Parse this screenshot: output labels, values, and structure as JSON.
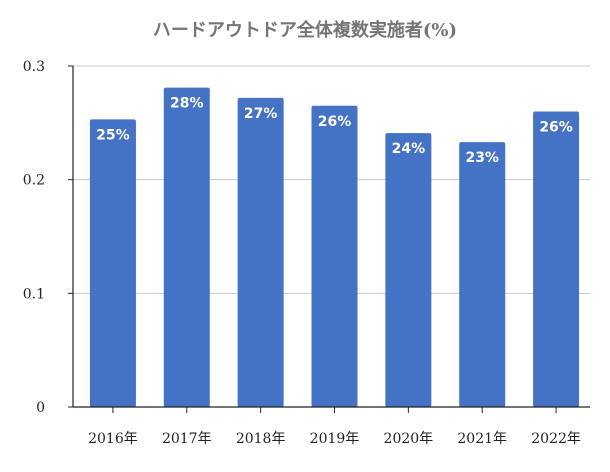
{
  "chart_data": {
    "type": "bar",
    "title": "ハードアウトドア全体複数実施者(%)",
    "xlabel": "",
    "ylabel": "",
    "categories": [
      "2016年",
      "2017年",
      "2018年",
      "2019年",
      "2020年",
      "2021年",
      "2022年"
    ],
    "values": [
      0.253,
      0.281,
      0.272,
      0.265,
      0.241,
      0.233,
      0.26
    ],
    "data_labels": [
      "25%",
      "28%",
      "27%",
      "26%",
      "24%",
      "23%",
      "26%"
    ],
    "ylim": [
      0,
      0.3
    ],
    "yticks": [
      "0",
      "0.1",
      "0.2",
      "0.3"
    ],
    "ytick_values": [
      0,
      0.1,
      0.2,
      0.3
    ],
    "grid": true,
    "legend": "none",
    "colors": {
      "bar": "#4472C4",
      "grid": "#C8C8C8",
      "axis": "#222222",
      "title": "#757575"
    }
  }
}
